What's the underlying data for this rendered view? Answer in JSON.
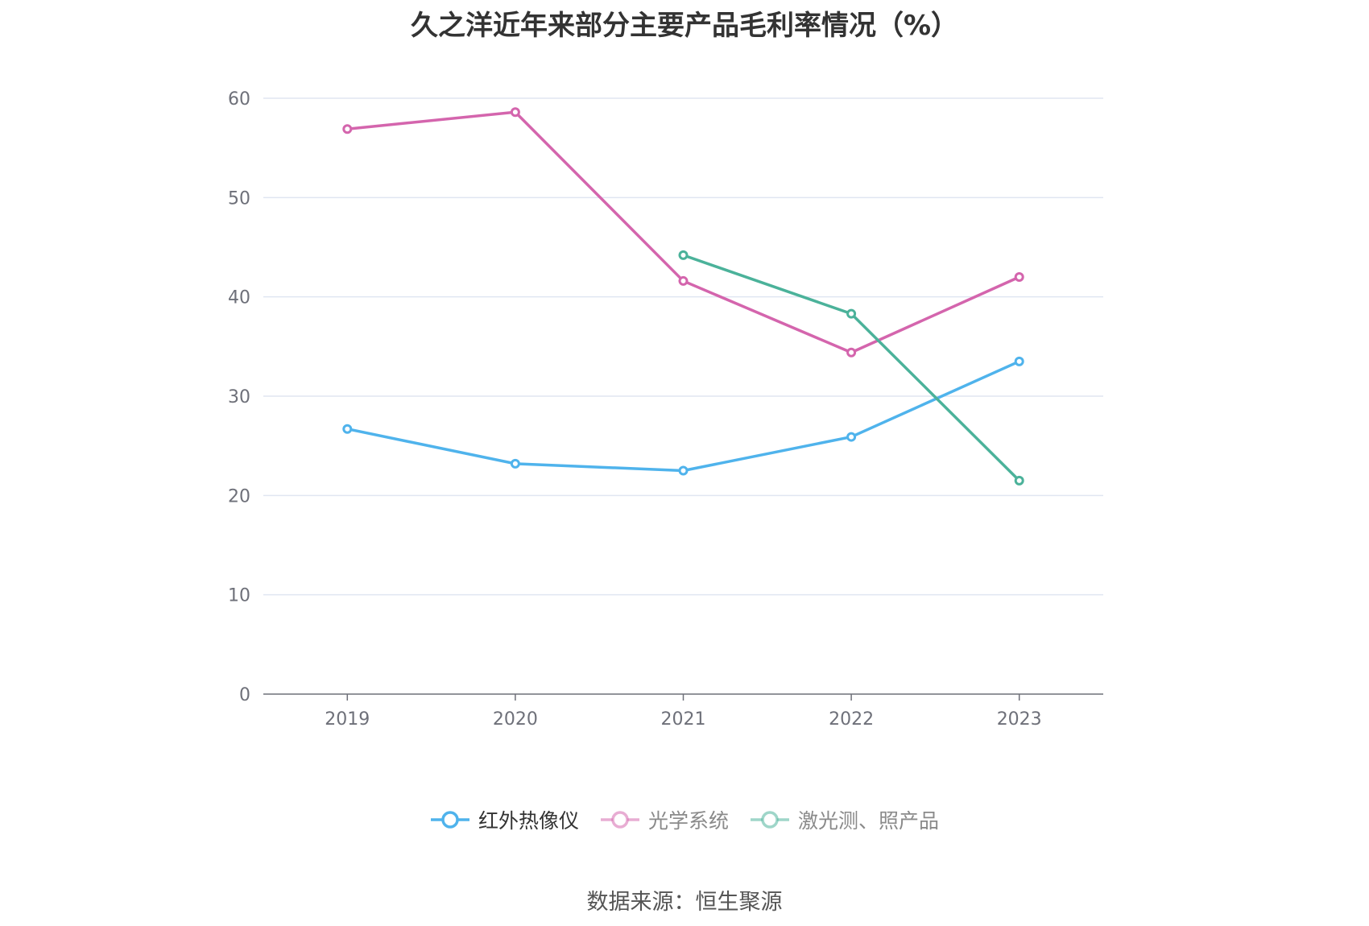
{
  "title": "久之洋近年来部分主要产品毛利率情况（%）",
  "source": "数据来源：恒生聚源",
  "chart_data": {
    "type": "line",
    "categories": [
      "2019",
      "2020",
      "2021",
      "2022",
      "2023"
    ],
    "y_ticks": [
      "0",
      "10",
      "20",
      "30",
      "40",
      "50",
      "60"
    ],
    "ylim": [
      0,
      60
    ],
    "grid": true,
    "legend_position": "bottom",
    "series": [
      {
        "name": "红外热像仪",
        "color": "#4fb3ec",
        "values": [
          26.7,
          23.2,
          22.5,
          25.9,
          33.5
        ],
        "active": true
      },
      {
        "name": "光学系统",
        "color": "#d465ad",
        "values": [
          56.9,
          58.6,
          41.6,
          34.4,
          42.0
        ],
        "active": false
      },
      {
        "name": "激光测、照产品",
        "color": "#4bb29a",
        "values": [
          null,
          null,
          44.2,
          38.3,
          21.5
        ],
        "active": false
      }
    ]
  }
}
